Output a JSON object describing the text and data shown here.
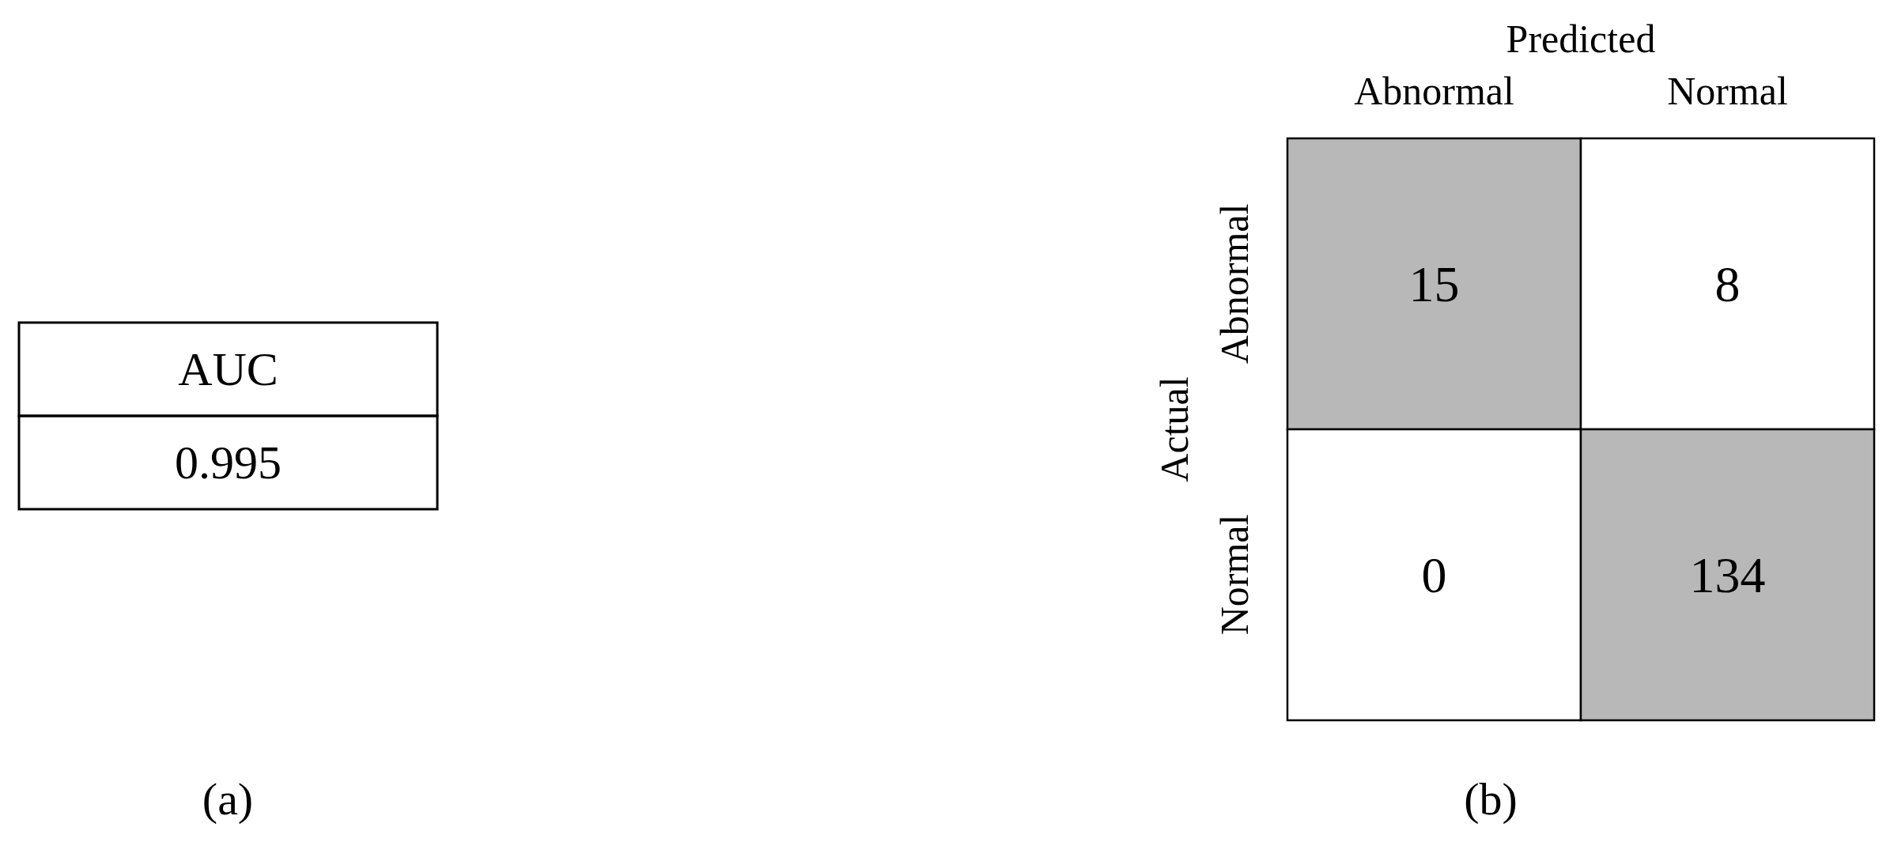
{
  "chart_data": [
    {
      "type": "other",
      "title": "(a)",
      "categories": [
        "AUC"
      ],
      "values": [
        0.995
      ],
      "data_labels": true
    },
    {
      "type": "heatmap",
      "title": "(b)",
      "xlabel": "Predicted",
      "ylabel": "Actual",
      "categories": [
        "Abnormal",
        "Normal"
      ],
      "y_categories": [
        "Abnormal",
        "Normal"
      ],
      "cells": [
        [
          15,
          8
        ],
        [
          0,
          134
        ]
      ],
      "colors": [
        "#b8b8b8",
        "#ffffff",
        "#ffffff",
        "#b8b8b8"
      ],
      "data_labels": true
    }
  ]
}
